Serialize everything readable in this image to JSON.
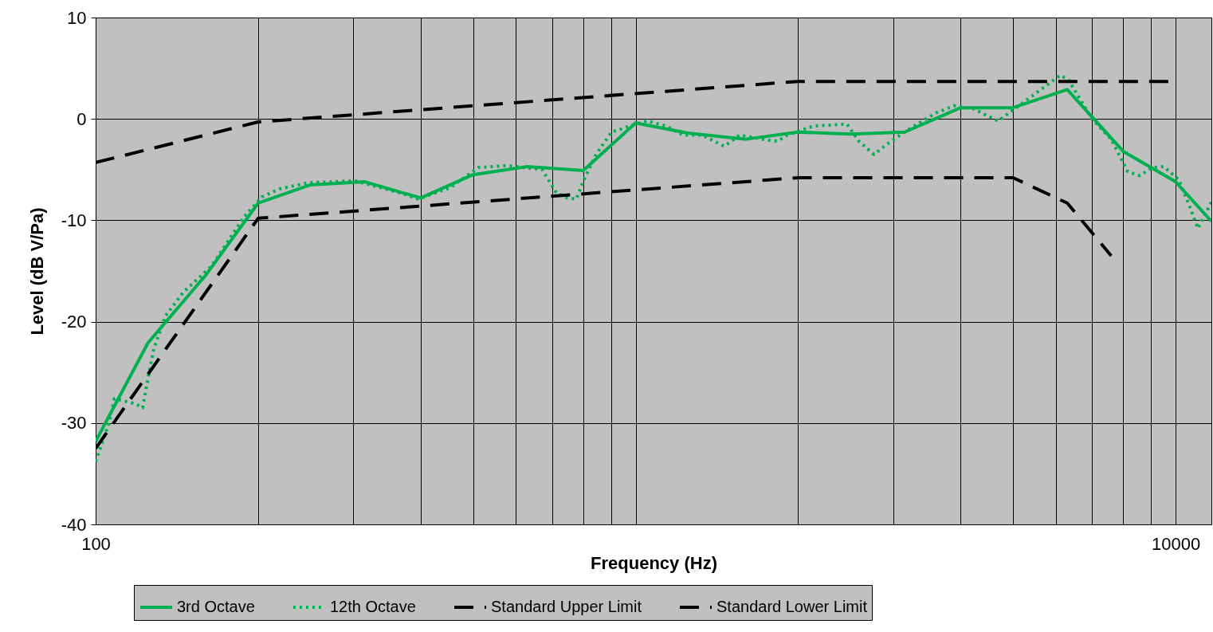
{
  "chart_data": {
    "type": "line",
    "xlabel": "Frequency (Hz)",
    "ylabel": "Level (dB V/Pa)",
    "log": "x",
    "xlim": [
      100,
      11650
    ],
    "ylim": [
      -40,
      10
    ],
    "xticks": [
      100,
      {
        "value": 200,
        "label": null
      },
      {
        "value": 300,
        "label": null
      },
      {
        "value": 400,
        "label": null
      },
      {
        "value": 500,
        "label": null
      },
      {
        "value": 600,
        "label": null
      },
      {
        "value": 700,
        "label": null
      },
      {
        "value": 800,
        "label": null
      },
      {
        "value": 900,
        "label": null
      },
      {
        "value": 1000,
        "label": null
      },
      {
        "value": 2000,
        "label": null
      },
      {
        "value": 3000,
        "label": null
      },
      {
        "value": 4000,
        "label": null
      },
      {
        "value": 5000,
        "label": null
      },
      {
        "value": 6000,
        "label": null
      },
      {
        "value": 7000,
        "label": null
      },
      {
        "value": 8000,
        "label": null
      },
      {
        "value": 9000,
        "label": null
      },
      10000
    ],
    "yticks": [
      -40,
      -30,
      -20,
      -10,
      0,
      10
    ],
    "grid": true,
    "legend": "bottom",
    "series": [
      {
        "name": "3rd Octave",
        "color": "#00b050",
        "line_style": "solid",
        "x": [
          100,
          125,
          160,
          200,
          250,
          315,
          400,
          500,
          630,
          800,
          1000,
          1250,
          1600,
          2000,
          2500,
          3150,
          4000,
          5000,
          6300,
          8000,
          10000,
          11650
        ],
        "values": [
          -31.8,
          -22.1,
          -15.4,
          -8.3,
          -6.5,
          -6.2,
          -7.8,
          -5.5,
          -4.7,
          -5.1,
          -0.4,
          -1.4,
          -2.0,
          -1.3,
          -1.5,
          -1.3,
          1.1,
          1.1,
          2.9,
          -3.2,
          -6.2,
          -10.1
        ]
      },
      {
        "name": "12th Octave",
        "color": "#00b050",
        "line_style": "dotted",
        "x": [
          100,
          105.9,
          108.3,
          118.5,
          122.2,
          125.1,
          128.1,
          134.8,
          145.3,
          164.1,
          188,
          203.2,
          219,
          247.5,
          301.3,
          366.8,
          395.4,
          452.8,
          511.6,
          578.1,
          671.3,
          713.6,
          748.2,
          776.6,
          800.9,
          842.7,
          902.1,
          975,
          1050.5,
          1139.6,
          1224,
          1328,
          1460,
          1557,
          1760,
          1833,
          1909,
          2135,
          2309,
          2462,
          2591,
          2764,
          2938,
          3187,
          3601,
          3894,
          4224,
          4692,
          5005,
          5503,
          6114,
          6325,
          7003,
          7598,
          8155,
          8584,
          9065,
          9505,
          10136,
          10559,
          11000,
          11376,
          11650
        ],
        "values": [
          -33.8,
          -30.0,
          -27.6,
          -28.1,
          -28.5,
          -25.5,
          -22.7,
          -19.4,
          -17.1,
          -14.5,
          -9.7,
          -7.7,
          -6.9,
          -6.3,
          -6.1,
          -7.3,
          -7.9,
          -6.8,
          -4.8,
          -4.6,
          -5.0,
          -7.3,
          -7.8,
          -7.9,
          -6.1,
          -3.6,
          -1.3,
          -0.7,
          -0.2,
          -0.7,
          -1.6,
          -1.6,
          -2.7,
          -1.6,
          -2.1,
          -2.2,
          -1.6,
          -0.7,
          -0.6,
          -0.5,
          -2.2,
          -3.5,
          -2.4,
          -1.1,
          0.6,
          1.3,
          1.0,
          -0.2,
          0.9,
          2.5,
          4.3,
          3.9,
          0.0,
          -2.0,
          -5.2,
          -5.6,
          -4.8,
          -4.7,
          -6.0,
          -8.3,
          -10.8,
          -9.3,
          -8.2
        ]
      },
      {
        "name": "Standard Upper Limit",
        "color": "#000000",
        "line_style": "dashed",
        "x": [
          100,
          200,
          2000,
          10000
        ],
        "values": [
          -4.3,
          -0.3,
          3.7,
          3.7
        ]
      },
      {
        "name": "Standard Lower Limit",
        "color": "#000000",
        "line_style": "dashed",
        "x": [
          100,
          200,
          2000,
          5000,
          6300,
          7600
        ],
        "values": [
          -32.5,
          -9.8,
          -5.8,
          -5.8,
          -8.3,
          -13.5
        ]
      }
    ]
  }
}
